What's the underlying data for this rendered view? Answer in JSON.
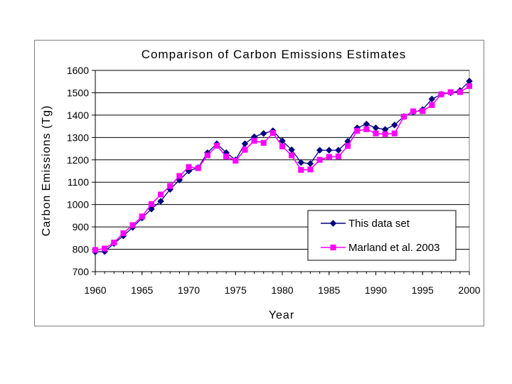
{
  "chart_data": {
    "type": "line",
    "title": "Comparison of Carbon Emissions Estimates",
    "xlabel": "Year",
    "ylabel": "Carbon Emissions (Tg)",
    "xlim": [
      1960,
      2000
    ],
    "ylim": [
      700,
      1600
    ],
    "xticks": [
      "1960",
      "1965",
      "1970",
      "1975",
      "1980",
      "1985",
      "1990",
      "1995",
      "2000"
    ],
    "yticks": [
      "700",
      "800",
      "900",
      "1000",
      "1100",
      "1200",
      "1300",
      "1400",
      "1500",
      "1600"
    ],
    "grid": "horizontal",
    "legend_position": "lower-right",
    "x": [
      1960,
      1961,
      1962,
      1963,
      1964,
      1965,
      1966,
      1967,
      1968,
      1969,
      1970,
      1971,
      1972,
      1973,
      1974,
      1975,
      1976,
      1977,
      1978,
      1979,
      1980,
      1981,
      1982,
      1983,
      1984,
      1985,
      1986,
      1987,
      1988,
      1989,
      1990,
      1991,
      1992,
      1993,
      1994,
      1995,
      1996,
      1997,
      1998,
      1999,
      2000
    ],
    "series": [
      {
        "name": "This data set",
        "color": "#000080",
        "marker": "diamond",
        "values": [
          788,
          790,
          826,
          860,
          898,
          940,
          980,
          1015,
          1068,
          1110,
          1150,
          1165,
          1232,
          1272,
          1232,
          1200,
          1272,
          1303,
          1318,
          1330,
          1285,
          1245,
          1188,
          1183,
          1243,
          1243,
          1243,
          1283,
          1343,
          1360,
          1343,
          1336,
          1356,
          1394,
          1413,
          1425,
          1472,
          1493,
          1500,
          1510,
          1552
        ]
      },
      {
        "name": "Marland et al. 2003",
        "color": "#ff00ff",
        "marker": "square",
        "values": [
          797,
          803,
          830,
          872,
          908,
          947,
          1002,
          1045,
          1083,
          1128,
          1168,
          1163,
          1220,
          1263,
          1215,
          1196,
          1245,
          1285,
          1276,
          1320,
          1260,
          1220,
          1155,
          1157,
          1200,
          1213,
          1215,
          1262,
          1330,
          1337,
          1318,
          1315,
          1318,
          1393,
          1417,
          1418,
          1445,
          1493,
          1503,
          1503,
          1530
        ]
      }
    ]
  }
}
